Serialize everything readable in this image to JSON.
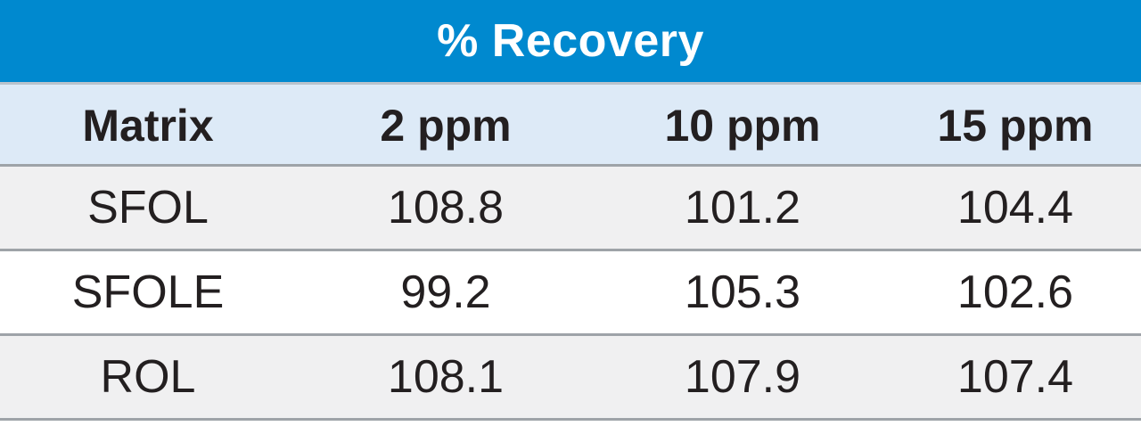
{
  "title": "% Recovery",
  "columns": [
    "Matrix",
    "2 ppm",
    "10 ppm",
    "15 ppm"
  ],
  "rows": [
    [
      "SFOL",
      "108.8",
      "101.2",
      "104.4"
    ],
    [
      "SFOLE",
      "99.2",
      "105.3",
      "102.6"
    ],
    [
      "ROL",
      "108.1",
      "107.9",
      "107.4"
    ]
  ],
  "colors": {
    "title_bg": "#0089cf",
    "header_bg": "#ddeaf7",
    "shaded_row_bg": "#f0f0f1"
  }
}
